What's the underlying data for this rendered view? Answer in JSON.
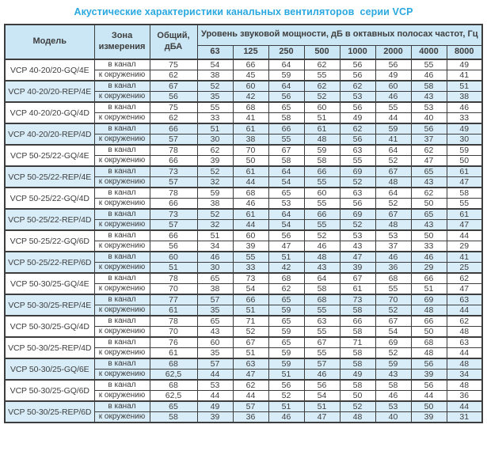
{
  "page": {
    "title": "Акустические характеристики канальных вентиляторов  серии VCP"
  },
  "colors": {
    "title": "#29a8e0",
    "header_bg": "#cbe6f4",
    "alt_row_bg": "#d9edf8",
    "border": "#3d3d3d",
    "text": "#3e3e3e"
  },
  "table": {
    "headers": {
      "model": "Модель",
      "zone": "Зона измерения",
      "total": "Общий, дБА",
      "band_group": "Уровень звуковой мощности, дБ в октавных полосах частот, Гц",
      "frequencies": [
        "63",
        "125",
        "250",
        "500",
        "1000",
        "2000",
        "4000",
        "8000"
      ]
    },
    "zone_labels": {
      "duct": "в канал",
      "ambient": "к окружению"
    },
    "rows": [
      {
        "model": "VCP 40-20/20-GQ/4E",
        "highlight": false,
        "duct": {
          "total": "75",
          "bands": [
            "54",
            "66",
            "64",
            "62",
            "56",
            "56",
            "55",
            "49"
          ]
        },
        "ambient": {
          "total": "62",
          "bands": [
            "38",
            "45",
            "59",
            "55",
            "56",
            "49",
            "46",
            "41"
          ]
        }
      },
      {
        "model": "VCP 40-20/20-REP/4E",
        "highlight": true,
        "duct": {
          "total": "67",
          "bands": [
            "52",
            "60",
            "64",
            "62",
            "62",
            "60",
            "58",
            "51"
          ]
        },
        "ambient": {
          "total": "56",
          "bands": [
            "35",
            "42",
            "56",
            "52",
            "53",
            "46",
            "43",
            "38"
          ]
        }
      },
      {
        "model": "VCP 40-20/20-GQ/4D",
        "highlight": false,
        "duct": {
          "total": "75",
          "bands": [
            "55",
            "68",
            "65",
            "60",
            "56",
            "55",
            "53",
            "46"
          ]
        },
        "ambient": {
          "total": "62",
          "bands": [
            "33",
            "41",
            "58",
            "51",
            "49",
            "44",
            "40",
            "33"
          ]
        }
      },
      {
        "model": "VCP 40-20/20-REP/4D",
        "highlight": true,
        "duct": {
          "total": "66",
          "bands": [
            "51",
            "61",
            "66",
            "61",
            "62",
            "59",
            "56",
            "49"
          ]
        },
        "ambient": {
          "total": "57",
          "bands": [
            "30",
            "38",
            "55",
            "48",
            "56",
            "41",
            "37",
            "30"
          ]
        }
      },
      {
        "model": "VCP 50-25/22-GQ/4E",
        "highlight": false,
        "duct": {
          "total": "78",
          "bands": [
            "62",
            "70",
            "67",
            "59",
            "63",
            "64",
            "62",
            "59"
          ]
        },
        "ambient": {
          "total": "66",
          "bands": [
            "39",
            "50",
            "58",
            "58",
            "55",
            "52",
            "47",
            "50"
          ]
        }
      },
      {
        "model": "VCP 50-25/22-REP/4E",
        "highlight": true,
        "duct": {
          "total": "73",
          "bands": [
            "52",
            "61",
            "64",
            "66",
            "69",
            "67",
            "65",
            "61"
          ]
        },
        "ambient": {
          "total": "57",
          "bands": [
            "32",
            "44",
            "54",
            "55",
            "52",
            "48",
            "43",
            "47"
          ]
        }
      },
      {
        "model": "VCP 50-25/22-GQ/4D",
        "highlight": false,
        "duct": {
          "total": "78",
          "bands": [
            "59",
            "68",
            "65",
            "60",
            "63",
            "64",
            "62",
            "58"
          ]
        },
        "ambient": {
          "total": "66",
          "bands": [
            "38",
            "46",
            "53",
            "55",
            "56",
            "52",
            "50",
            "55"
          ]
        }
      },
      {
        "model": "VCP 50-25/22-REP/4D",
        "highlight": true,
        "duct": {
          "total": "73",
          "bands": [
            "52",
            "61",
            "64",
            "66",
            "69",
            "67",
            "65",
            "61"
          ]
        },
        "ambient": {
          "total": "57",
          "bands": [
            "32",
            "44",
            "54",
            "55",
            "52",
            "48",
            "43",
            "47"
          ]
        }
      },
      {
        "model": "VCP 50-25/22-GQ/6D",
        "highlight": false,
        "duct": {
          "total": "66",
          "bands": [
            "51",
            "60",
            "56",
            "52",
            "53",
            "53",
            "50",
            "44"
          ]
        },
        "ambient": {
          "total": "56",
          "bands": [
            "34",
            "39",
            "47",
            "46",
            "43",
            "37",
            "33",
            "29"
          ]
        }
      },
      {
        "model": "VCP 50-25/22-REP/6D",
        "highlight": true,
        "duct": {
          "total": "60",
          "bands": [
            "46",
            "55",
            "51",
            "48",
            "47",
            "46",
            "46",
            "41"
          ]
        },
        "ambient": {
          "total": "51",
          "bands": [
            "30",
            "33",
            "42",
            "43",
            "39",
            "36",
            "29",
            "25"
          ]
        }
      },
      {
        "model": "VCP 50-30/25-GQ/4E",
        "highlight": false,
        "duct": {
          "total": "78",
          "bands": [
            "65",
            "73",
            "68",
            "64",
            "67",
            "68",
            "66",
            "62"
          ]
        },
        "ambient": {
          "total": "70",
          "bands": [
            "38",
            "54",
            "62",
            "58",
            "61",
            "55",
            "51",
            "47"
          ]
        }
      },
      {
        "model": "VCP 50-30/25-REP/4E",
        "highlight": true,
        "duct": {
          "total": "77",
          "bands": [
            "57",
            "66",
            "65",
            "68",
            "73",
            "70",
            "69",
            "63"
          ]
        },
        "ambient": {
          "total": "61",
          "bands": [
            "35",
            "51",
            "59",
            "55",
            "58",
            "52",
            "48",
            "44"
          ]
        }
      },
      {
        "model": "VCP 50-30/25-GQ/4D",
        "highlight": false,
        "duct": {
          "total": "78",
          "bands": [
            "65",
            "71",
            "65",
            "63",
            "66",
            "67",
            "66",
            "62"
          ]
        },
        "ambient": {
          "total": "70",
          "bands": [
            "43",
            "52",
            "59",
            "55",
            "58",
            "54",
            "50",
            "48"
          ]
        }
      },
      {
        "model": "VCP 50-30/25-REP/4D",
        "highlight": false,
        "duct": {
          "total": "76",
          "bands": [
            "60",
            "67",
            "65",
            "67",
            "71",
            "69",
            "68",
            "63"
          ]
        },
        "ambient": {
          "total": "61",
          "bands": [
            "35",
            "51",
            "59",
            "55",
            "58",
            "52",
            "48",
            "44"
          ]
        }
      },
      {
        "model": "VCP 50-30/25-GQ/6E",
        "highlight": true,
        "duct": {
          "total": "68",
          "bands": [
            "57",
            "63",
            "59",
            "57",
            "58",
            "59",
            "56",
            "48"
          ]
        },
        "ambient": {
          "total": "62,5",
          "bands": [
            "44",
            "47",
            "51",
            "46",
            "49",
            "43",
            "39",
            "34"
          ]
        }
      },
      {
        "model": "VCP 50-30/25-GQ/6D",
        "highlight": false,
        "duct": {
          "total": "68",
          "bands": [
            "53",
            "62",
            "56",
            "56",
            "58",
            "58",
            "56",
            "48"
          ]
        },
        "ambient": {
          "total": "62,5",
          "bands": [
            "44",
            "44",
            "52",
            "54",
            "50",
            "46",
            "44",
            "36"
          ]
        }
      },
      {
        "model": "VCP 50-30/25-REP/6D",
        "highlight": true,
        "duct": {
          "total": "65",
          "bands": [
            "49",
            "57",
            "51",
            "51",
            "52",
            "53",
            "50",
            "44"
          ]
        },
        "ambient": {
          "total": "58",
          "bands": [
            "39",
            "36",
            "46",
            "47",
            "48",
            "40",
            "39",
            "31"
          ]
        }
      }
    ]
  }
}
